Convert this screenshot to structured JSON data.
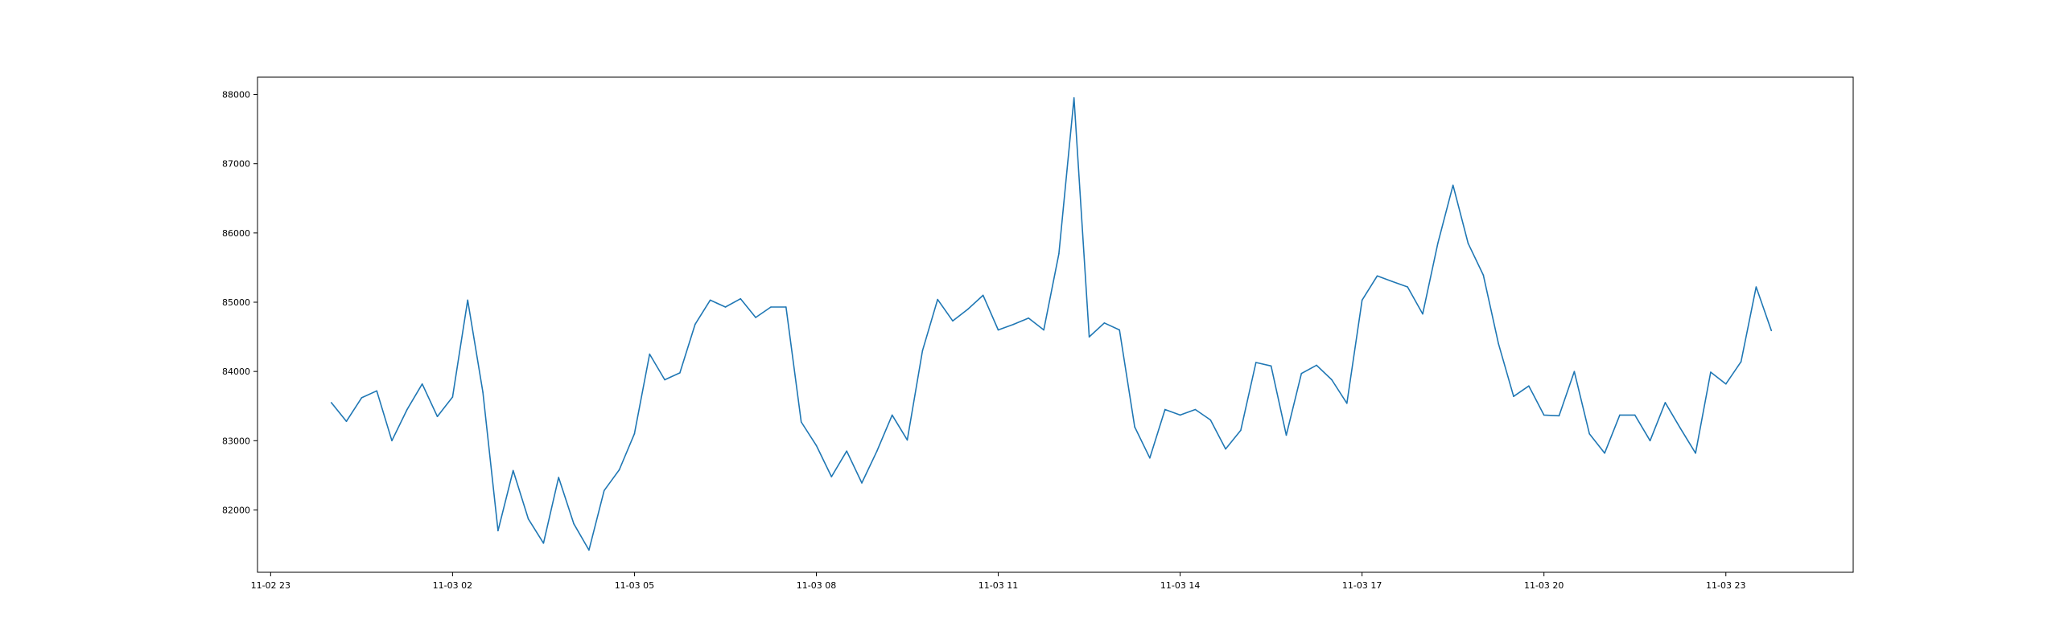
{
  "chart_data": {
    "type": "line",
    "title": "",
    "xlabel": "",
    "ylabel": "",
    "grid": false,
    "legend": "none",
    "line_color": "#1f77b4",
    "x_start": "2024-11-03 00:00",
    "x_step_minutes": 15,
    "x_ticks": [
      {
        "value": "2024-11-02 23:00",
        "label": "11-02 23"
      },
      {
        "value": "2024-11-03 02:00",
        "label": "11-03 02"
      },
      {
        "value": "2024-11-03 05:00",
        "label": "11-03 05"
      },
      {
        "value": "2024-11-03 08:00",
        "label": "11-03 08"
      },
      {
        "value": "2024-11-03 11:00",
        "label": "11-03 11"
      },
      {
        "value": "2024-11-03 14:00",
        "label": "11-03 14"
      },
      {
        "value": "2024-11-03 17:00",
        "label": "11-03 17"
      },
      {
        "value": "2024-11-03 20:00",
        "label": "11-03 20"
      },
      {
        "value": "2024-11-03 23:00",
        "label": "11-03 23"
      }
    ],
    "y_ticks": [
      {
        "value": 82000,
        "label": "82000"
      },
      {
        "value": 83000,
        "label": "83000"
      },
      {
        "value": 84000,
        "label": "84000"
      },
      {
        "value": 85000,
        "label": "85000"
      },
      {
        "value": 86000,
        "label": "86000"
      },
      {
        "value": 87000,
        "label": "87000"
      },
      {
        "value": 88000,
        "label": "88000"
      }
    ],
    "xlim": [
      "2024-11-02 22:47",
      "2024-11-04 01:06"
    ],
    "ylim": [
      81100,
      88250
    ],
    "series": [
      {
        "values": [
          83550,
          83280,
          83620,
          83720,
          83000,
          83450,
          83820,
          83350,
          83630,
          85030,
          83700,
          81700,
          82570,
          81870,
          81520,
          82470,
          81800,
          81420,
          82280,
          82580,
          83100,
          84250,
          83880,
          83980,
          84680,
          85030,
          84930,
          85050,
          84780,
          84930,
          84930,
          83270,
          82930,
          82480,
          82850,
          82390,
          82850,
          83370,
          83010,
          84300,
          85040,
          84730,
          84900,
          85100,
          84600,
          84680,
          84770,
          84600,
          85700,
          87950,
          84500,
          84700,
          84600,
          83200,
          82750,
          83450,
          83370,
          83450,
          83300,
          82880,
          83150,
          84130,
          84080,
          83080,
          83970,
          84090,
          83880,
          83540,
          85030,
          85380,
          85300,
          85220,
          84830,
          85850,
          86690,
          85850,
          85390,
          84400,
          83640,
          83790,
          83370,
          83360,
          84000,
          83100,
          82820,
          83370,
          83370,
          83000,
          83550,
          83180,
          82820,
          83990,
          83820,
          84140,
          85220,
          84590
        ]
      }
    ]
  }
}
